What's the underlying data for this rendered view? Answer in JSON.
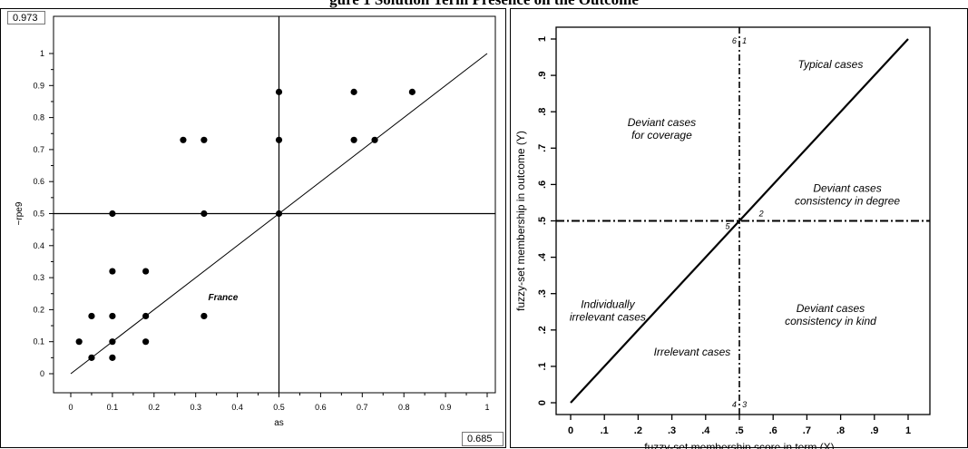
{
  "page_title": "gure 1 Solution Term Presence on the Outcome",
  "chart_data": [
    {
      "type": "scatter",
      "top_box": "0.973",
      "bottom_box": "0.685",
      "xlabel": "as",
      "ylabel": "~rpe9",
      "xlim": [
        0,
        1
      ],
      "ylim": [
        0,
        1
      ],
      "x_ticks": [
        "0",
        "0.1",
        "0.2",
        "0.3",
        "0.4",
        "0.5",
        "0.6",
        "0.7",
        "0.8",
        "0.9",
        "1"
      ],
      "y_ticks": [
        "0",
        "0.1",
        "0.2",
        "0.3",
        "0.4",
        "0.5",
        "0.6",
        "0.7",
        "0.8",
        "0.9",
        "1"
      ],
      "reference_lines": {
        "vertical_x": 0.5,
        "horizontal_y": 0.5,
        "diagonal": [
          [
            0,
            0
          ],
          [
            1,
            1
          ]
        ]
      },
      "annotation": {
        "text": "France",
        "x": 0.33,
        "y": 0.23
      },
      "points": [
        {
          "x": 0.02,
          "y": 0.1
        },
        {
          "x": 0.05,
          "y": 0.18
        },
        {
          "x": 0.05,
          "y": 0.05
        },
        {
          "x": 0.1,
          "y": 0.5
        },
        {
          "x": 0.1,
          "y": 0.32
        },
        {
          "x": 0.1,
          "y": 0.18
        },
        {
          "x": 0.1,
          "y": 0.1
        },
        {
          "x": 0.1,
          "y": 0.05
        },
        {
          "x": 0.18,
          "y": 0.32
        },
        {
          "x": 0.18,
          "y": 0.18
        },
        {
          "x": 0.18,
          "y": 0.1
        },
        {
          "x": 0.27,
          "y": 0.73
        },
        {
          "x": 0.32,
          "y": 0.73
        },
        {
          "x": 0.32,
          "y": 0.5
        },
        {
          "x": 0.32,
          "y": 0.18
        },
        {
          "x": 0.5,
          "y": 0.88
        },
        {
          "x": 0.5,
          "y": 0.73
        },
        {
          "x": 0.5,
          "y": 0.5
        },
        {
          "x": 0.68,
          "y": 0.88
        },
        {
          "x": 0.68,
          "y": 0.73
        },
        {
          "x": 0.73,
          "y": 0.73
        },
        {
          "x": 0.82,
          "y": 0.88
        }
      ]
    },
    {
      "type": "line",
      "xlabel": "fuzzy-set membership score in term (X)",
      "ylabel": "fuzzy-set membership in outcome (Y)",
      "xlim": [
        0,
        1
      ],
      "ylim": [
        0,
        1
      ],
      "x_ticks": [
        "0",
        ".1",
        ".2",
        ".3",
        ".4",
        ".5",
        ".6",
        ".7",
        ".8",
        ".9",
        "1"
      ],
      "y_ticks": [
        "0",
        ".1",
        ".2",
        ".3",
        ".4",
        ".5",
        ".6",
        ".7",
        ".8",
        ".9",
        "1"
      ],
      "diagonal": [
        [
          0,
          0
        ],
        [
          1,
          1
        ]
      ],
      "dashed_lines": {
        "vertical_x": 0.5,
        "horizontal_y": 0.5
      },
      "regions": [
        {
          "lines": [
            "Typical cases"
          ],
          "x": 0.77,
          "y": 0.92
        },
        {
          "lines": [
            "Deviant cases",
            "for coverage"
          ],
          "x": 0.27,
          "y": 0.76
        },
        {
          "lines": [
            "Deviant cases",
            "consistency in degree"
          ],
          "x": 0.82,
          "y": 0.58
        },
        {
          "lines": [
            "Individually",
            "irrelevant cases"
          ],
          "x": 0.11,
          "y": 0.26
        },
        {
          "lines": [
            "Irrelevant cases"
          ],
          "x": 0.36,
          "y": 0.13
        },
        {
          "lines": [
            "Deviant cases",
            "consistency in kind"
          ],
          "x": 0.77,
          "y": 0.25
        }
      ],
      "zone_numbers": [
        {
          "text": "6",
          "x": 0.485,
          "y": 0.995
        },
        {
          "text": "1",
          "x": 0.515,
          "y": 0.995
        },
        {
          "text": "2",
          "x": 0.565,
          "y": 0.52
        },
        {
          "text": "5",
          "x": 0.465,
          "y": 0.485
        },
        {
          "text": "4",
          "x": 0.485,
          "y": -0.005
        },
        {
          "text": "3",
          "x": 0.515,
          "y": -0.005
        }
      ]
    }
  ]
}
